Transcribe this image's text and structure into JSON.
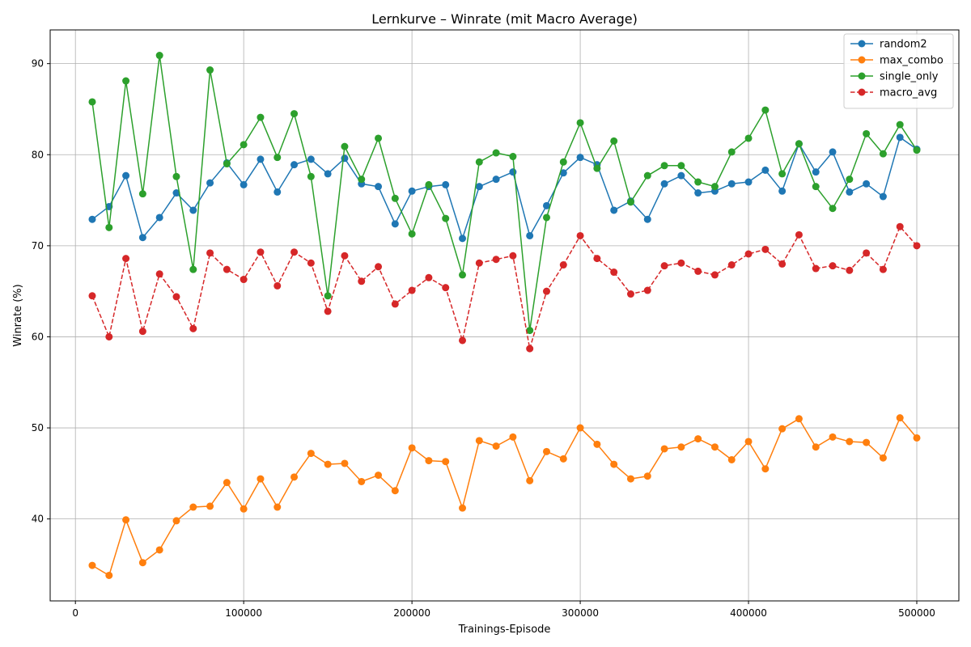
{
  "chart_data": {
    "type": "line",
    "title": "Lernkurve – Winrate (mit Macro Average)",
    "xlabel": "Trainings-Episode",
    "ylabel": "Winrate (%)",
    "xlim": [
      -15000,
      525000
    ],
    "ylim": [
      31,
      93.7
    ],
    "xticks": [
      0,
      100000,
      200000,
      300000,
      400000,
      500000
    ],
    "xtick_labels": [
      "0",
      "100000",
      "200000",
      "300000",
      "400000",
      "500000"
    ],
    "yticks": [
      40,
      50,
      60,
      70,
      80,
      90
    ],
    "ytick_labels": [
      "40",
      "50",
      "60",
      "70",
      "80",
      "90"
    ],
    "grid": true,
    "legend_position": "top-right",
    "x": [
      10000,
      20000,
      30000,
      40000,
      50000,
      60000,
      70000,
      80000,
      90000,
      100000,
      110000,
      120000,
      130000,
      140000,
      150000,
      160000,
      170000,
      180000,
      190000,
      200000,
      210000,
      220000,
      230000,
      240000,
      250000,
      260000,
      270000,
      280000,
      290000,
      300000,
      310000,
      320000,
      330000,
      340000,
      350000,
      360000,
      370000,
      380000,
      390000,
      400000,
      410000,
      420000,
      430000,
      440000,
      450000,
      460000,
      470000,
      480000,
      490000,
      500000
    ],
    "series": [
      {
        "name": "random2",
        "color": "#1f77b4",
        "linestyle": "solid",
        "values": [
          72.9,
          74.3,
          77.7,
          70.9,
          73.1,
          75.8,
          73.9,
          76.9,
          79.1,
          76.7,
          79.5,
          75.9,
          78.9,
          79.5,
          77.9,
          79.6,
          76.8,
          76.5,
          72.4,
          76.0,
          76.5,
          76.7,
          70.8,
          76.5,
          77.3,
          78.1,
          71.1,
          74.4,
          78.0,
          79.7,
          78.9,
          73.9,
          74.9,
          72.9,
          76.8,
          77.7,
          75.8,
          76.0,
          76.8,
          77.0,
          78.3,
          76.0,
          81.2,
          78.1,
          80.3,
          75.9,
          76.8,
          75.4,
          81.9,
          80.6
        ]
      },
      {
        "name": "max_combo",
        "color": "#ff7f0e",
        "linestyle": "solid",
        "values": [
          34.9,
          33.8,
          39.9,
          35.2,
          36.6,
          39.8,
          41.3,
          41.4,
          44.0,
          41.1,
          44.4,
          41.3,
          44.6,
          47.2,
          46.0,
          46.1,
          44.1,
          44.8,
          43.1,
          47.8,
          46.4,
          46.3,
          41.2,
          48.6,
          48.0,
          49.0,
          44.2,
          47.4,
          46.6,
          50.0,
          48.2,
          46.0,
          44.4,
          44.7,
          47.7,
          47.9,
          48.8,
          47.9,
          46.5,
          48.5,
          45.5,
          49.9,
          51.0,
          47.9,
          49.0,
          48.5,
          48.4,
          46.7,
          51.1,
          48.9
        ]
      },
      {
        "name": "single_only",
        "color": "#2ca02c",
        "linestyle": "solid",
        "values": [
          85.8,
          72.0,
          88.1,
          75.7,
          90.9,
          77.6,
          67.4,
          89.3,
          79.0,
          81.1,
          84.1,
          79.7,
          84.5,
          77.6,
          64.5,
          80.9,
          77.3,
          81.8,
          75.2,
          71.3,
          76.7,
          73.0,
          66.8,
          79.2,
          80.2,
          79.8,
          60.7,
          73.1,
          79.2,
          83.5,
          78.5,
          81.5,
          74.8,
          77.7,
          78.8,
          78.8,
          77.0,
          76.5,
          80.3,
          81.8,
          84.9,
          77.9,
          81.2,
          76.5,
          74.1,
          77.3,
          82.3,
          80.1,
          83.3,
          80.5
        ]
      },
      {
        "name": "macro_avg",
        "color": "#d62728",
        "linestyle": "dashed",
        "values": [
          64.5,
          60.0,
          68.6,
          60.6,
          66.9,
          64.4,
          60.9,
          69.2,
          67.4,
          66.3,
          69.3,
          65.6,
          69.3,
          68.1,
          62.8,
          68.9,
          66.1,
          67.7,
          63.6,
          65.1,
          66.5,
          65.4,
          59.6,
          68.1,
          68.5,
          68.9,
          58.7,
          65.0,
          67.9,
          71.1,
          68.6,
          67.1,
          64.7,
          65.1,
          67.8,
          68.1,
          67.2,
          66.8,
          67.9,
          69.1,
          69.6,
          68.0,
          71.2,
          67.5,
          67.8,
          67.3,
          69.2,
          67.4,
          72.1,
          70.0
        ]
      }
    ]
  }
}
